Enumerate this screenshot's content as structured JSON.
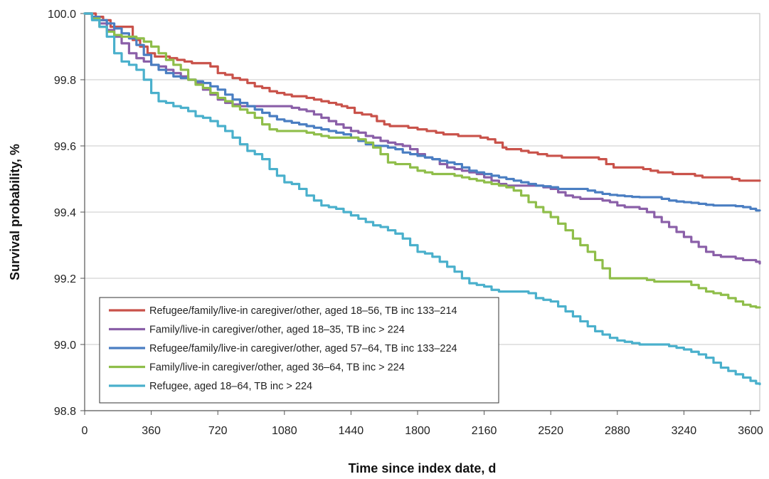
{
  "chart_data": {
    "type": "line",
    "title": "",
    "xlabel": "Time since index date, d",
    "ylabel": "Survival probability, %",
    "xlim": [
      0,
      3650
    ],
    "ylim": [
      98.8,
      100.0
    ],
    "x_ticks": [
      0,
      360,
      720,
      1080,
      1440,
      1800,
      2160,
      2520,
      2880,
      3240,
      3600
    ],
    "y_ticks": [
      98.8,
      99.0,
      99.2,
      99.4,
      99.6,
      99.8,
      100.0
    ],
    "y_tick_labels": [
      "98.8",
      "99.0",
      "99.2",
      "99.4",
      "99.6",
      "99.8",
      "100.0"
    ],
    "grid": "horizontal",
    "legend_position": "bottom-left",
    "series": [
      {
        "name": "Refugee/family/live-in caregiver/other, aged 18–56, TB inc 133–214",
        "color": "#c9524a",
        "x": [
          0,
          60,
          100,
          140,
          200,
          260,
          300,
          340,
          380,
          420,
          460,
          500,
          540,
          580,
          610,
          640,
          680,
          720,
          760,
          800,
          840,
          880,
          920,
          960,
          1000,
          1040,
          1080,
          1120,
          1160,
          1200,
          1240,
          1280,
          1320,
          1360,
          1390,
          1420,
          1460,
          1500,
          1520,
          1550,
          1580,
          1620,
          1650,
          1700,
          1750,
          1800,
          1850,
          1900,
          1940,
          1980,
          2020,
          2060,
          2100,
          2140,
          2180,
          2220,
          2260,
          2280,
          2320,
          2360,
          2400,
          2450,
          2500,
          2540,
          2580,
          2620,
          2660,
          2700,
          2740,
          2780,
          2820,
          2860,
          2900,
          2940,
          2980,
          3020,
          3060,
          3100,
          3140,
          3180,
          3220,
          3260,
          3300,
          3340,
          3380,
          3420,
          3460,
          3500,
          3540,
          3580,
          3620,
          3650
        ],
        "values": [
          100.0,
          99.99,
          99.98,
          99.96,
          99.96,
          99.92,
          99.9,
          99.88,
          99.87,
          99.87,
          99.865,
          99.86,
          99.855,
          99.85,
          99.85,
          99.85,
          99.84,
          99.82,
          99.815,
          99.805,
          99.8,
          99.79,
          99.78,
          99.775,
          99.765,
          99.76,
          99.755,
          99.75,
          99.75,
          99.745,
          99.74,
          99.735,
          99.73,
          99.725,
          99.72,
          99.715,
          99.7,
          99.695,
          99.695,
          99.69,
          99.675,
          99.665,
          99.66,
          99.66,
          99.655,
          99.65,
          99.645,
          99.64,
          99.635,
          99.635,
          99.63,
          99.63,
          99.63,
          99.625,
          99.62,
          99.61,
          99.595,
          99.59,
          99.59,
          99.585,
          99.58,
          99.575,
          99.57,
          99.57,
          99.565,
          99.565,
          99.565,
          99.565,
          99.565,
          99.56,
          99.545,
          99.535,
          99.535,
          99.535,
          99.535,
          99.53,
          99.525,
          99.52,
          99.52,
          99.515,
          99.515,
          99.515,
          99.51,
          99.505,
          99.505,
          99.505,
          99.505,
          99.5,
          99.495,
          99.495,
          99.495,
          99.495
        ]
      },
      {
        "name": "Family/live-in caregiver/other, aged 18–35, TB inc > 224",
        "color": "#8a5fa8",
        "x": [
          0,
          40,
          80,
          120,
          160,
          200,
          240,
          280,
          320,
          360,
          400,
          440,
          480,
          520,
          560,
          600,
          640,
          680,
          720,
          760,
          800,
          840,
          880,
          920,
          960,
          1000,
          1040,
          1080,
          1120,
          1160,
          1200,
          1240,
          1280,
          1320,
          1360,
          1400,
          1440,
          1480,
          1520,
          1560,
          1600,
          1640,
          1680,
          1720,
          1760,
          1800,
          1840,
          1880,
          1920,
          1960,
          2000,
          2040,
          2080,
          2120,
          2160,
          2200,
          2240,
          2280,
          2320,
          2360,
          2400,
          2440,
          2480,
          2520,
          2560,
          2600,
          2640,
          2680,
          2720,
          2760,
          2800,
          2840,
          2880,
          2920,
          2960,
          3000,
          3040,
          3080,
          3120,
          3160,
          3200,
          3240,
          3280,
          3320,
          3360,
          3400,
          3440,
          3480,
          3520,
          3560,
          3600,
          3630,
          3650
        ],
        "values": [
          100.0,
          99.99,
          99.97,
          99.95,
          99.93,
          99.91,
          99.88,
          99.865,
          99.855,
          99.845,
          99.84,
          99.83,
          99.82,
          99.81,
          99.8,
          99.79,
          99.77,
          99.755,
          99.74,
          99.73,
          99.725,
          99.72,
          99.72,
          99.72,
          99.72,
          99.72,
          99.72,
          99.72,
          99.715,
          99.71,
          99.705,
          99.695,
          99.685,
          99.675,
          99.665,
          99.655,
          99.645,
          99.64,
          99.63,
          99.625,
          99.615,
          99.61,
          99.605,
          99.6,
          99.59,
          99.575,
          99.565,
          99.56,
          99.545,
          99.535,
          99.53,
          99.525,
          99.52,
          99.515,
          99.505,
          99.495,
          99.485,
          99.48,
          99.48,
          99.48,
          99.48,
          99.48,
          99.475,
          99.47,
          99.46,
          99.45,
          99.445,
          99.44,
          99.44,
          99.44,
          99.435,
          99.43,
          99.42,
          99.415,
          99.415,
          99.41,
          99.4,
          99.385,
          99.37,
          99.355,
          99.34,
          99.325,
          99.31,
          99.295,
          99.28,
          99.27,
          99.265,
          99.265,
          99.26,
          99.255,
          99.255,
          99.25,
          99.245
        ]
      },
      {
        "name": "Refugee/family/live-in caregiver/other, aged 57–64, TB inc 133–224",
        "color": "#4a7ec2",
        "x": [
          0,
          40,
          80,
          120,
          160,
          200,
          240,
          280,
          320,
          360,
          400,
          440,
          480,
          520,
          560,
          600,
          640,
          680,
          720,
          760,
          800,
          840,
          880,
          920,
          960,
          1000,
          1040,
          1080,
          1120,
          1160,
          1200,
          1240,
          1280,
          1320,
          1360,
          1400,
          1440,
          1480,
          1520,
          1560,
          1600,
          1640,
          1680,
          1720,
          1760,
          1800,
          1840,
          1880,
          1920,
          1960,
          2000,
          2040,
          2080,
          2120,
          2160,
          2200,
          2240,
          2280,
          2320,
          2360,
          2400,
          2440,
          2480,
          2520,
          2560,
          2600,
          2640,
          2680,
          2720,
          2760,
          2800,
          2840,
          2880,
          2920,
          2960,
          3000,
          3040,
          3080,
          3120,
          3160,
          3200,
          3240,
          3280,
          3320,
          3360,
          3400,
          3440,
          3480,
          3520,
          3560,
          3600,
          3630,
          3650
        ],
        "values": [
          100.0,
          99.99,
          99.98,
          99.97,
          99.955,
          99.94,
          99.925,
          99.905,
          99.875,
          99.845,
          99.83,
          99.82,
          99.81,
          99.805,
          99.8,
          99.795,
          99.79,
          99.78,
          99.77,
          99.755,
          99.74,
          99.73,
          99.72,
          99.71,
          99.7,
          99.69,
          99.68,
          99.675,
          99.67,
          99.665,
          99.66,
          99.655,
          99.65,
          99.645,
          99.64,
          99.635,
          99.625,
          99.615,
          99.605,
          99.6,
          99.6,
          99.595,
          99.59,
          99.58,
          99.575,
          99.57,
          99.565,
          99.56,
          99.555,
          99.55,
          99.545,
          99.535,
          99.525,
          99.52,
          99.515,
          99.51,
          99.505,
          99.5,
          99.495,
          99.49,
          99.485,
          99.48,
          99.478,
          99.475,
          99.47,
          99.47,
          99.47,
          99.47,
          99.465,
          99.46,
          99.455,
          99.452,
          99.45,
          99.448,
          99.446,
          99.445,
          99.445,
          99.445,
          99.44,
          99.435,
          99.432,
          99.43,
          99.428,
          99.425,
          99.422,
          99.42,
          99.42,
          99.42,
          99.418,
          99.415,
          99.41,
          99.405,
          99.405
        ]
      },
      {
        "name": "Family/live-in caregiver/other, aged 36–64, TB inc > 224",
        "color": "#8fbe4a",
        "x": [
          0,
          40,
          80,
          120,
          160,
          200,
          240,
          280,
          320,
          360,
          400,
          440,
          480,
          520,
          560,
          600,
          640,
          680,
          720,
          760,
          800,
          840,
          880,
          920,
          960,
          1000,
          1040,
          1080,
          1120,
          1160,
          1200,
          1240,
          1280,
          1320,
          1360,
          1400,
          1440,
          1480,
          1520,
          1560,
          1600,
          1640,
          1680,
          1720,
          1760,
          1800,
          1840,
          1880,
          1920,
          1960,
          2000,
          2040,
          2080,
          2120,
          2160,
          2200,
          2240,
          2280,
          2320,
          2360,
          2400,
          2440,
          2480,
          2520,
          2560,
          2600,
          2640,
          2680,
          2720,
          2760,
          2800,
          2840,
          2880,
          2920,
          2960,
          3000,
          3040,
          3080,
          3120,
          3160,
          3200,
          3240,
          3280,
          3320,
          3360,
          3400,
          3440,
          3480,
          3520,
          3560,
          3600,
          3630,
          3650
        ],
        "values": [
          100.0,
          99.985,
          99.96,
          99.945,
          99.935,
          99.93,
          99.93,
          99.925,
          99.915,
          99.9,
          99.88,
          99.86,
          99.845,
          99.83,
          99.8,
          99.785,
          99.775,
          99.76,
          99.745,
          99.735,
          99.72,
          99.71,
          99.7,
          99.685,
          99.665,
          99.65,
          99.645,
          99.645,
          99.645,
          99.645,
          99.64,
          99.635,
          99.63,
          99.625,
          99.625,
          99.625,
          99.625,
          99.62,
          99.61,
          99.595,
          99.575,
          99.55,
          99.545,
          99.545,
          99.535,
          99.525,
          99.52,
          99.515,
          99.515,
          99.515,
          99.51,
          99.505,
          99.5,
          99.495,
          99.49,
          99.485,
          99.48,
          99.475,
          99.465,
          99.45,
          99.43,
          99.415,
          99.4,
          99.385,
          99.365,
          99.345,
          99.32,
          99.3,
          99.28,
          99.255,
          99.23,
          99.2,
          99.2,
          99.2,
          99.2,
          99.2,
          99.195,
          99.19,
          99.19,
          99.19,
          99.19,
          99.19,
          99.18,
          99.17,
          99.16,
          99.155,
          99.15,
          99.14,
          99.13,
          99.12,
          99.115,
          99.112,
          99.112
        ]
      },
      {
        "name": "Refugee, aged 18–64, TB inc > 224",
        "color": "#4ab0cc",
        "x": [
          0,
          40,
          80,
          120,
          160,
          200,
          240,
          280,
          320,
          360,
          400,
          440,
          480,
          520,
          560,
          600,
          640,
          680,
          720,
          760,
          800,
          840,
          880,
          920,
          960,
          1000,
          1040,
          1080,
          1120,
          1160,
          1200,
          1240,
          1280,
          1320,
          1360,
          1400,
          1440,
          1480,
          1520,
          1560,
          1600,
          1640,
          1680,
          1720,
          1760,
          1800,
          1840,
          1880,
          1920,
          1960,
          2000,
          2040,
          2080,
          2120,
          2160,
          2200,
          2240,
          2280,
          2320,
          2360,
          2400,
          2440,
          2480,
          2520,
          2560,
          2600,
          2640,
          2680,
          2720,
          2760,
          2800,
          2840,
          2880,
          2920,
          2960,
          3000,
          3040,
          3080,
          3120,
          3160,
          3200,
          3240,
          3280,
          3320,
          3360,
          3400,
          3440,
          3480,
          3520,
          3560,
          3600,
          3630,
          3650
        ],
        "values": [
          100.0,
          99.98,
          99.96,
          99.93,
          99.88,
          99.855,
          99.845,
          99.83,
          99.8,
          99.76,
          99.735,
          99.73,
          99.72,
          99.715,
          99.705,
          99.69,
          99.685,
          99.675,
          99.66,
          99.645,
          99.625,
          99.605,
          99.585,
          99.575,
          99.56,
          99.53,
          99.51,
          99.49,
          99.485,
          99.47,
          99.45,
          99.435,
          99.42,
          99.415,
          99.41,
          99.4,
          99.39,
          99.38,
          99.37,
          99.36,
          99.355,
          99.345,
          99.335,
          99.32,
          99.3,
          99.28,
          99.275,
          99.265,
          99.25,
          99.235,
          99.22,
          99.2,
          99.185,
          99.18,
          99.175,
          99.165,
          99.16,
          99.16,
          99.16,
          99.16,
          99.155,
          99.14,
          99.135,
          99.13,
          99.115,
          99.1,
          99.085,
          99.07,
          99.055,
          99.04,
          99.03,
          99.02,
          99.012,
          99.008,
          99.004,
          99.0,
          99.0,
          99.0,
          99.0,
          98.995,
          98.99,
          98.985,
          98.978,
          98.97,
          98.96,
          98.945,
          98.93,
          98.92,
          98.91,
          98.9,
          98.89,
          98.882,
          98.88
        ]
      }
    ]
  }
}
